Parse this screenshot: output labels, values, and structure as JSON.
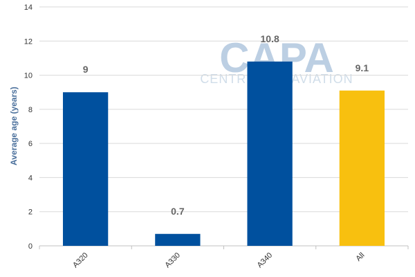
{
  "chart_data": {
    "type": "bar",
    "categories": [
      "A320",
      "A330",
      "A340",
      "All"
    ],
    "values": [
      9,
      0.7,
      10.8,
      9.1
    ],
    "value_labels": [
      "9",
      "0.7",
      "10.8",
      "9.1"
    ],
    "bar_colors": [
      "#00509e",
      "#00509e",
      "#00509e",
      "#f8c00f"
    ],
    "ylabel": "Average age (years)",
    "ylim": [
      0,
      14
    ],
    "yticks": [
      0,
      2,
      4,
      6,
      8,
      10,
      12,
      14
    ],
    "grid": true,
    "legend": "none"
  },
  "watermark": {
    "brand": "CAPA",
    "tagline": "CENTRE FOR AVIATION"
  },
  "colors": {
    "grid": "#d9d9d9",
    "axis": "#c0c0c0"
  }
}
